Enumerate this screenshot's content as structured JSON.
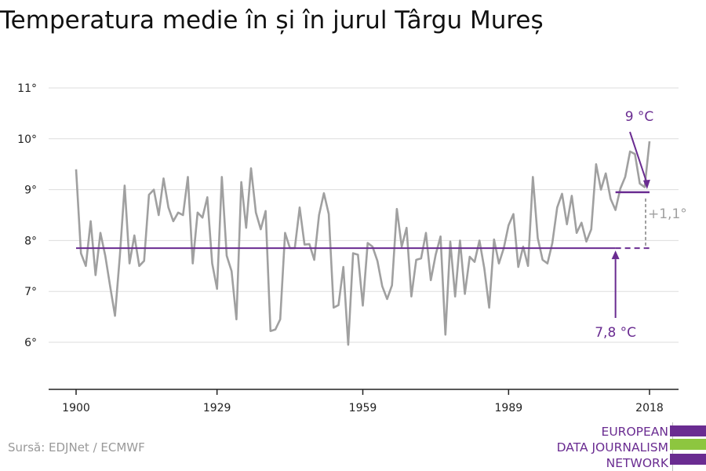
{
  "title": "Temperatura medie în și în jurul Târgu Mureș",
  "source": "Sursă: EDJNet / ECMWF",
  "logo": {
    "lines": [
      "EUROPEAN",
      "DATA JOURNALISM",
      "NETWORK"
    ],
    "colors": {
      "purple": "#6a2c91",
      "green": "#8dc63f"
    }
  },
  "chart_data": {
    "type": "line",
    "title": "Temperatura medie în și în jurul Târgu Mureș",
    "xlabel": "",
    "ylabel": "",
    "xlim": [
      1900,
      2018
    ],
    "ylim": [
      5,
      11
    ],
    "x_ticks": [
      1900,
      1929,
      1959,
      1989,
      2018
    ],
    "x_tick_labels": [
      "1900",
      "1929",
      "1959",
      "1989",
      "2018"
    ],
    "y_ticks": [
      6,
      7,
      8,
      9,
      10,
      11
    ],
    "y_tick_labels": [
      "6°",
      "7°",
      "8°",
      "9°",
      "10°",
      "11°"
    ],
    "grid": "horizontal",
    "series": [
      {
        "color": "#a0a0a0",
        "x": [
          1900,
          1901,
          1902,
          1903,
          1904,
          1905,
          1906,
          1907,
          1908,
          1909,
          1910,
          1911,
          1912,
          1913,
          1914,
          1915,
          1916,
          1917,
          1918,
          1919,
          1920,
          1921,
          1922,
          1923,
          1924,
          1925,
          1926,
          1927,
          1928,
          1929,
          1930,
          1931,
          1932,
          1933,
          1934,
          1935,
          1936,
          1937,
          1938,
          1939,
          1940,
          1941,
          1942,
          1943,
          1944,
          1945,
          1946,
          1947,
          1948,
          1949,
          1950,
          1951,
          1952,
          1953,
          1954,
          1955,
          1956,
          1957,
          1958,
          1959,
          1960,
          1961,
          1962,
          1963,
          1964,
          1965,
          1966,
          1967,
          1968,
          1969,
          1970,
          1971,
          1972,
          1973,
          1974,
          1975,
          1976,
          1977,
          1978,
          1979,
          1980,
          1981,
          1982,
          1983,
          1984,
          1985,
          1986,
          1987,
          1988,
          1989,
          1990,
          1991,
          1992,
          1993,
          1994,
          1995,
          1996,
          1997,
          1998,
          1999,
          2000,
          2001,
          2002,
          2003,
          2004,
          2005,
          2006,
          2007,
          2008,
          2009,
          2010,
          2011,
          2012,
          2013,
          2014,
          2015,
          2016,
          2017,
          2018
        ],
        "values": [
          9.4,
          7.75,
          7.5,
          8.38,
          7.32,
          8.15,
          7.7,
          7.1,
          6.52,
          7.7,
          9.08,
          7.55,
          8.1,
          7.5,
          7.6,
          8.9,
          9.0,
          8.5,
          9.22,
          8.65,
          8.38,
          8.55,
          8.5,
          9.25,
          7.55,
          8.55,
          8.45,
          8.85,
          7.55,
          7.05,
          9.25,
          7.7,
          7.4,
          6.45,
          9.15,
          8.25,
          9.42,
          8.55,
          8.22,
          8.58,
          6.22,
          6.25,
          6.45,
          8.15,
          7.85,
          7.85,
          8.65,
          7.92,
          7.93,
          7.62,
          8.5,
          8.93,
          8.52,
          6.68,
          6.73,
          7.48,
          5.95,
          7.75,
          7.72,
          6.72,
          7.95,
          7.88,
          7.6,
          7.1,
          6.85,
          7.12,
          8.62,
          7.88,
          8.25,
          6.9,
          7.62,
          7.65,
          8.15,
          7.22,
          7.72,
          8.08,
          6.15,
          7.98,
          6.9,
          8.0,
          6.95,
          7.68,
          7.58,
          8.0,
          7.45,
          6.68,
          8.02,
          7.55,
          7.85,
          8.3,
          8.52,
          7.48,
          7.88,
          7.5,
          9.25,
          8.05,
          7.62,
          7.55,
          7.95,
          8.65,
          8.92,
          8.32,
          8.88,
          8.15,
          8.35,
          7.98,
          8.22,
          9.5,
          9.0,
          9.32,
          8.82,
          8.6,
          9.02,
          9.25,
          9.75,
          9.7,
          9.12,
          9.05,
          9.95
        ]
      }
    ],
    "reference_lines": [
      {
        "label": "7,8 °C",
        "value": 7.85,
        "from": 1900,
        "to": 2018,
        "solid_until": 2011,
        "color": "#6a2c91"
      },
      {
        "label": "9 °C",
        "value": 8.95,
        "from": 2011,
        "to": 2018,
        "color": "#6a2c91"
      }
    ],
    "annotations": [
      {
        "label": "+1,1°",
        "x": 2018,
        "from": 7.85,
        "to": 8.95,
        "color": "#a0a0a0"
      }
    ]
  }
}
